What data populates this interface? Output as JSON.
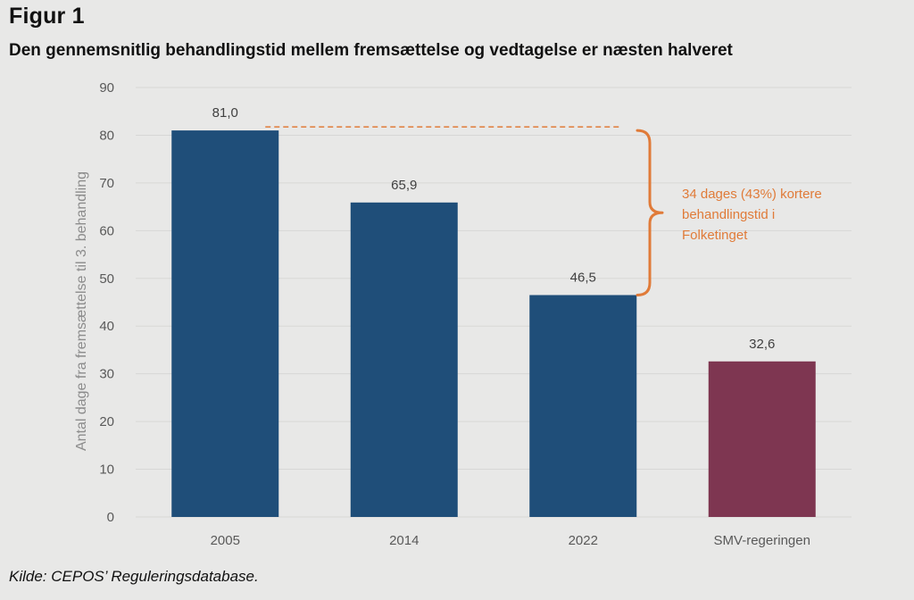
{
  "figure_label": "Figur 1",
  "figure_title": "Den gennemsnitlig behandlingstid mellem fremsættelse og vedtagelse er næsten halveret",
  "source": "Kilde: CEPOS’ Reguleringsdatabase.",
  "colors": {
    "background": "#e8e8e7",
    "bar_primary": "#1f4e79",
    "bar_highlight": "#7e3651",
    "annotation": "#e07b39",
    "gridline": "#d7d7d6"
  },
  "chart_data": {
    "type": "bar",
    "title": "Den gennemsnitlig behandlingstid mellem fremsættelse og vedtagelse er næsten halveret",
    "categories": [
      "2005",
      "2014",
      "2022",
      "SMV-regeringen"
    ],
    "values": [
      81.0,
      65.9,
      46.5,
      32.6
    ],
    "value_labels": [
      "81,0",
      "65,9",
      "46,5",
      "32,6"
    ],
    "highlight_index": 3,
    "xlabel": "",
    "ylabel": "Antal dage fra fremsættelse til 3. behandling",
    "ylim": [
      0,
      90
    ],
    "yticks": [
      0,
      10,
      20,
      30,
      40,
      50,
      60,
      70,
      80,
      90
    ],
    "grid": true,
    "annotation": {
      "lines": [
        "34 dages (43%) kortere",
        "behandlingstid i",
        "Folketinget"
      ],
      "from_value": 81.0,
      "to_value": 46.5
    }
  }
}
